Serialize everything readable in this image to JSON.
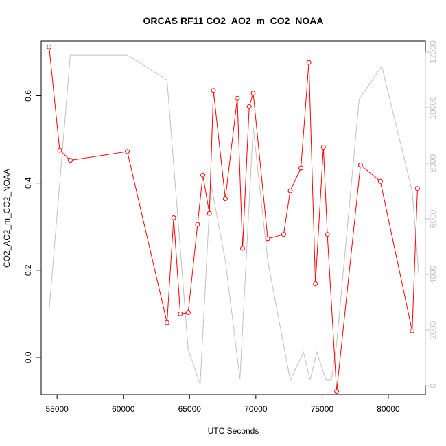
{
  "chart_data": {
    "type": "line",
    "title": "ORCAS RF11 CO2_AO2_m_CO2_NOAA",
    "xlabel": "UTC Seconds",
    "ylabel": "CO2_AO2_m_CO2_NOAA",
    "xlim": [
      53800,
      82800
    ],
    "ylim": [
      -0.085,
      0.725
    ],
    "y2lim": [
      0,
      12000
    ],
    "x_ticks": [
      55000,
      60000,
      65000,
      70000,
      75000,
      80000
    ],
    "y_ticks": [
      0.0,
      0.2,
      0.4,
      0.6
    ],
    "y2_ticks": [
      0,
      2000,
      4000,
      6000,
      8000,
      10000,
      12000
    ],
    "grid": false,
    "series": [
      {
        "axis": "left",
        "color": "#ff0000",
        "marker": "circle",
        "points": [
          [
            54400,
            0.712
          ],
          [
            55200,
            0.475
          ],
          [
            56000,
            0.452
          ],
          [
            60300,
            0.472
          ],
          [
            63300,
            0.08
          ],
          [
            63800,
            0.32
          ],
          [
            64300,
            0.1
          ],
          [
            64900,
            0.103
          ],
          [
            65600,
            0.305
          ],
          [
            66000,
            0.418
          ],
          [
            66500,
            0.33
          ],
          [
            66800,
            0.612
          ],
          [
            67700,
            0.364
          ],
          [
            68600,
            0.594
          ],
          [
            69000,
            0.25
          ],
          [
            69500,
            0.575
          ],
          [
            69800,
            0.606
          ],
          [
            70900,
            0.272
          ],
          [
            72100,
            0.282
          ],
          [
            72600,
            0.382
          ],
          [
            73400,
            0.434
          ],
          [
            74000,
            0.676
          ],
          [
            74500,
            0.169
          ],
          [
            75100,
            0.482
          ],
          [
            75400,
            0.282
          ],
          [
            76100,
            -0.078
          ],
          [
            77900,
            0.441
          ],
          [
            79400,
            0.404
          ],
          [
            81800,
            0.061
          ],
          [
            82200,
            0.387
          ]
        ]
      },
      {
        "axis": "right",
        "color": "#c0c0c0",
        "marker": "none",
        "points": [
          [
            54400,
            2700
          ],
          [
            56000,
            11900
          ],
          [
            60300,
            11900
          ],
          [
            63300,
            11000
          ],
          [
            64900,
            1300
          ],
          [
            65800,
            50
          ],
          [
            66600,
            7300
          ],
          [
            67700,
            4500
          ],
          [
            68800,
            250
          ],
          [
            69800,
            9300
          ],
          [
            70900,
            4500
          ],
          [
            72600,
            200
          ],
          [
            73600,
            1200
          ],
          [
            74100,
            200
          ],
          [
            74600,
            1200
          ],
          [
            75300,
            200
          ],
          [
            75700,
            200
          ],
          [
            76100,
            1500
          ],
          [
            77800,
            10300
          ],
          [
            79500,
            11500
          ],
          [
            81800,
            7000
          ],
          [
            82300,
            4000
          ]
        ]
      }
    ]
  }
}
